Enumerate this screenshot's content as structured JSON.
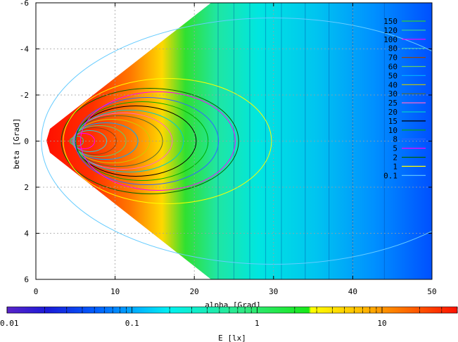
{
  "chart_data": {
    "type": "heatmap",
    "title": "",
    "xlabel": "alpha [Grad]",
    "ylabel": "beta [Grad]",
    "xlim": [
      0,
      50
    ],
    "ylim": [
      -6,
      6
    ],
    "y_axis_inverted": true,
    "x_ticks": [
      "0",
      "10",
      "20",
      "30",
      "40",
      "50"
    ],
    "y_ticks": [
      "-6",
      "-4",
      "-2",
      "0",
      "2",
      "4",
      "6"
    ],
    "grid": true,
    "legend_position": "top-right",
    "contour_levels": [
      {
        "label": "150",
        "value": 150,
        "color": "#33cc33"
      },
      {
        "label": "120",
        "value": 120,
        "color": "#33cc99"
      },
      {
        "label": "100",
        "value": 100,
        "color": "#ff00ff"
      },
      {
        "label": "80",
        "value": 80,
        "color": "#33cccc"
      },
      {
        "label": "70",
        "value": 70,
        "color": "#8b4513"
      },
      {
        "label": "60",
        "value": 60,
        "color": "#66cc66"
      },
      {
        "label": "50",
        "value": 50,
        "color": "#00aaff"
      },
      {
        "label": "40",
        "value": 40,
        "color": "#cccc00"
      },
      {
        "label": "30",
        "value": 30,
        "color": "#556b2f"
      },
      {
        "label": "25",
        "value": 25,
        "color": "#ff66cc"
      },
      {
        "label": "20",
        "value": 20,
        "color": "#00cccc"
      },
      {
        "label": "15",
        "value": 15,
        "color": "#000000"
      },
      {
        "label": "10",
        "value": 10,
        "color": "#00aa00"
      },
      {
        "label": "8",
        "value": 8,
        "color": "#3366ff"
      },
      {
        "label": "5",
        "value": 5,
        "color": "#ff00ff"
      },
      {
        "label": "2",
        "value": 2,
        "color": "#006400"
      },
      {
        "label": "1",
        "value": 1,
        "color": "#ffff00"
      },
      {
        "label": "0.1",
        "value": 0.1,
        "color": "#66ccff"
      }
    ],
    "colorbar": {
      "label": "E [lx]",
      "scale": "log",
      "range": [
        0.01,
        40
      ],
      "ticks": [
        "0.01",
        "0.1",
        "1",
        "10"
      ]
    }
  }
}
